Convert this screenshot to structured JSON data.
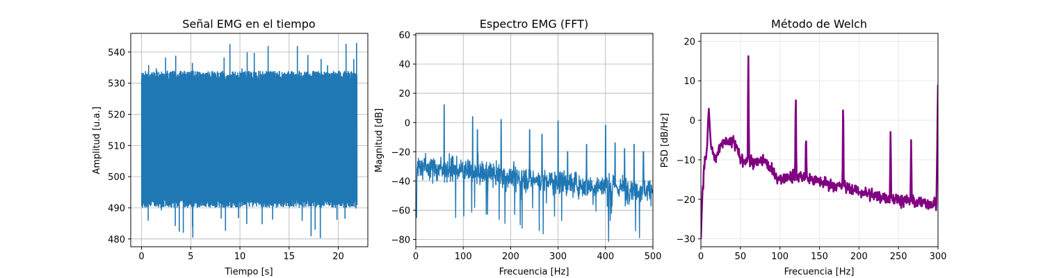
{
  "colors": {
    "time_signal": "#1f77b4",
    "fft": "#1f77b4",
    "welch": "#800080",
    "grid": "#b0b0b0"
  },
  "chart_data": [
    {
      "type": "line",
      "title": "Señal EMG en el tiempo",
      "xlabel": "Tiempo [s]",
      "ylabel": "Amplitud [u.a.]",
      "xlim": [
        -1.1,
        23.0
      ],
      "ylim": [
        477.5,
        546.0
      ],
      "xticks": [
        0,
        5,
        10,
        15,
        20
      ],
      "yticks": [
        480,
        490,
        500,
        510,
        520,
        530,
        540
      ],
      "grid": true,
      "x_range": [
        0,
        21.9
      ],
      "signal_band": {
        "typical_min": 490,
        "typical_max": 534,
        "center": 512,
        "peak_max": 543,
        "peak_min": 480
      }
    },
    {
      "type": "line",
      "title": "Espectro EMG (FFT)",
      "xlabel": "Frecuencia [Hz]",
      "ylabel": "Magnitud [dB]",
      "xlim": [
        0,
        500
      ],
      "ylim": [
        -85,
        61
      ],
      "xticks": [
        0,
        100,
        200,
        300,
        400,
        500
      ],
      "yticks": [
        -80,
        -60,
        -40,
        -20,
        0,
        20,
        40,
        60
      ],
      "grid": true,
      "baseline": [
        [
          0,
          -30
        ],
        [
          100,
          -33
        ],
        [
          200,
          -37
        ],
        [
          300,
          -41
        ],
        [
          400,
          -44
        ],
        [
          500,
          -46
        ]
      ],
      "spikes": [
        {
          "freq": 60,
          "db": 12
        },
        {
          "freq": 120,
          "db": 4
        },
        {
          "freq": 130,
          "db": -5
        },
        {
          "freq": 180,
          "db": 2
        },
        {
          "freq": 240,
          "db": -5
        },
        {
          "freq": 266,
          "db": -8
        },
        {
          "freq": 300,
          "db": 1
        },
        {
          "freq": 320,
          "db": -20
        },
        {
          "freq": 360,
          "db": -15
        },
        {
          "freq": 400,
          "db": -2
        },
        {
          "freq": 420,
          "db": -14
        },
        {
          "freq": 440,
          "db": -18
        },
        {
          "freq": 460,
          "db": -15
        },
        {
          "freq": 480,
          "db": -20
        }
      ]
    },
    {
      "type": "line",
      "title": "Método de Welch",
      "xlabel": "Frecuencia [Hz]",
      "ylabel": "PSD [dB/Hz]",
      "xlim": [
        0,
        300
      ],
      "ylim": [
        -32,
        22
      ],
      "xticks": [
        0,
        50,
        100,
        150,
        200,
        250,
        300
      ],
      "yticks": [
        -30,
        -20,
        -10,
        0,
        10,
        20
      ],
      "grid": true,
      "baseline": [
        [
          0,
          -30
        ],
        [
          2,
          -18
        ],
        [
          5,
          -10
        ],
        [
          8,
          -8
        ],
        [
          12,
          -6
        ],
        [
          18,
          -10
        ],
        [
          25,
          -7
        ],
        [
          30,
          -5
        ],
        [
          35,
          -6
        ],
        [
          40,
          -5
        ],
        [
          45,
          -7
        ],
        [
          50,
          -10
        ],
        [
          60,
          -10
        ],
        [
          70,
          -11
        ],
        [
          80,
          -10
        ],
        [
          90,
          -13
        ],
        [
          100,
          -15
        ],
        [
          110,
          -14
        ],
        [
          125,
          -14
        ],
        [
          140,
          -15
        ],
        [
          160,
          -16
        ],
        [
          180,
          -17
        ],
        [
          200,
          -18
        ],
        [
          220,
          -19
        ],
        [
          250,
          -20
        ],
        [
          280,
          -21
        ],
        [
          298,
          -21
        ],
        [
          300,
          9
        ]
      ],
      "peaks": [
        {
          "freq": 10,
          "psd": 3
        },
        {
          "freq": 60,
          "psd": 19.5
        },
        {
          "freq": 120,
          "psd": 10
        },
        {
          "freq": 133,
          "psd": -2.5
        },
        {
          "freq": 180,
          "psd": 8
        },
        {
          "freq": 240,
          "psd": -1
        },
        {
          "freq": 266,
          "psd": -4
        }
      ]
    }
  ]
}
